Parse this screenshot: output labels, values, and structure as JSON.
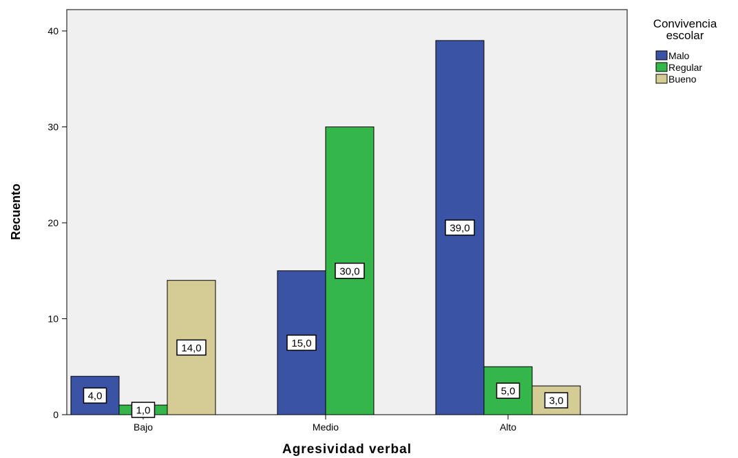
{
  "chart_data": {
    "type": "bar",
    "xlabel": "Agresividad verbal",
    "ylabel": "Recuento",
    "categories": [
      "Bajo",
      "Medio",
      "Alto"
    ],
    "ylim": [
      0,
      42
    ],
    "yticks": [
      0,
      10,
      20,
      30,
      40
    ],
    "grid": false,
    "legend": {
      "title_lines": [
        "Convivencia",
        "escolar"
      ],
      "placement": "top-right-outside"
    },
    "series": [
      {
        "name": "Malo",
        "color": "#3a53a4",
        "values": [
          4,
          15,
          39
        ],
        "labels": [
          "4,0",
          "15,0",
          "39,0"
        ]
      },
      {
        "name": "Regular",
        "color": "#34b64a",
        "values": [
          1,
          30,
          5
        ],
        "labels": [
          "1,0",
          "30,0",
          "5,0"
        ]
      },
      {
        "name": "Bueno",
        "color": "#d4cc94",
        "values": [
          14,
          null,
          3
        ],
        "labels": [
          "14,0",
          null,
          "3,0"
        ]
      }
    ]
  }
}
